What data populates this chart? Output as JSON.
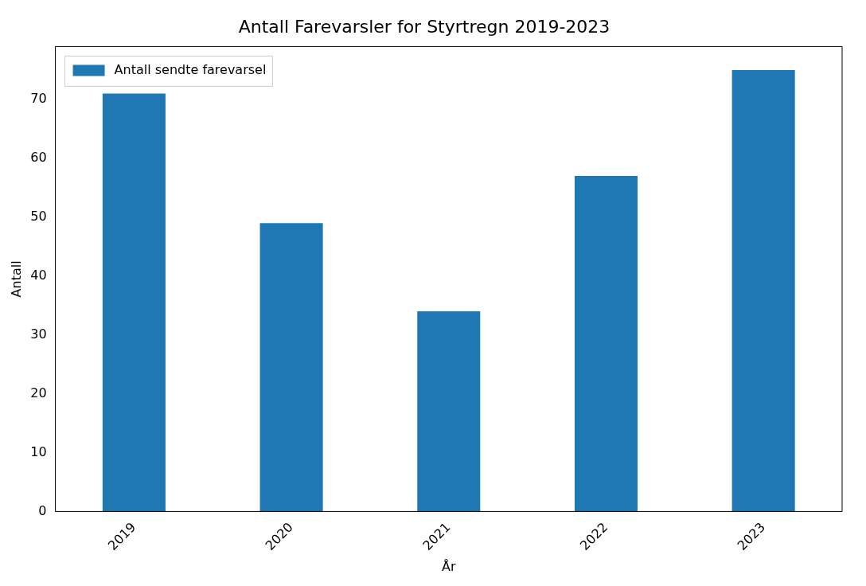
{
  "chart_data": {
    "type": "bar",
    "title": "Antall Farevarsler for Styrtregn 2019-2023",
    "xlabel": "År",
    "ylabel": "Antall",
    "categories": [
      "2019",
      "2020",
      "2021",
      "2022",
      "2023"
    ],
    "series": [
      {
        "name": "Antall sendte farevarsel",
        "color": "#1f77b4",
        "values": [
          71,
          49,
          34,
          57,
          75
        ]
      }
    ],
    "ylim": [
      0,
      79
    ],
    "yticks": [
      0,
      10,
      20,
      30,
      40,
      50,
      60,
      70
    ],
    "grid": false,
    "legend": "top left"
  }
}
